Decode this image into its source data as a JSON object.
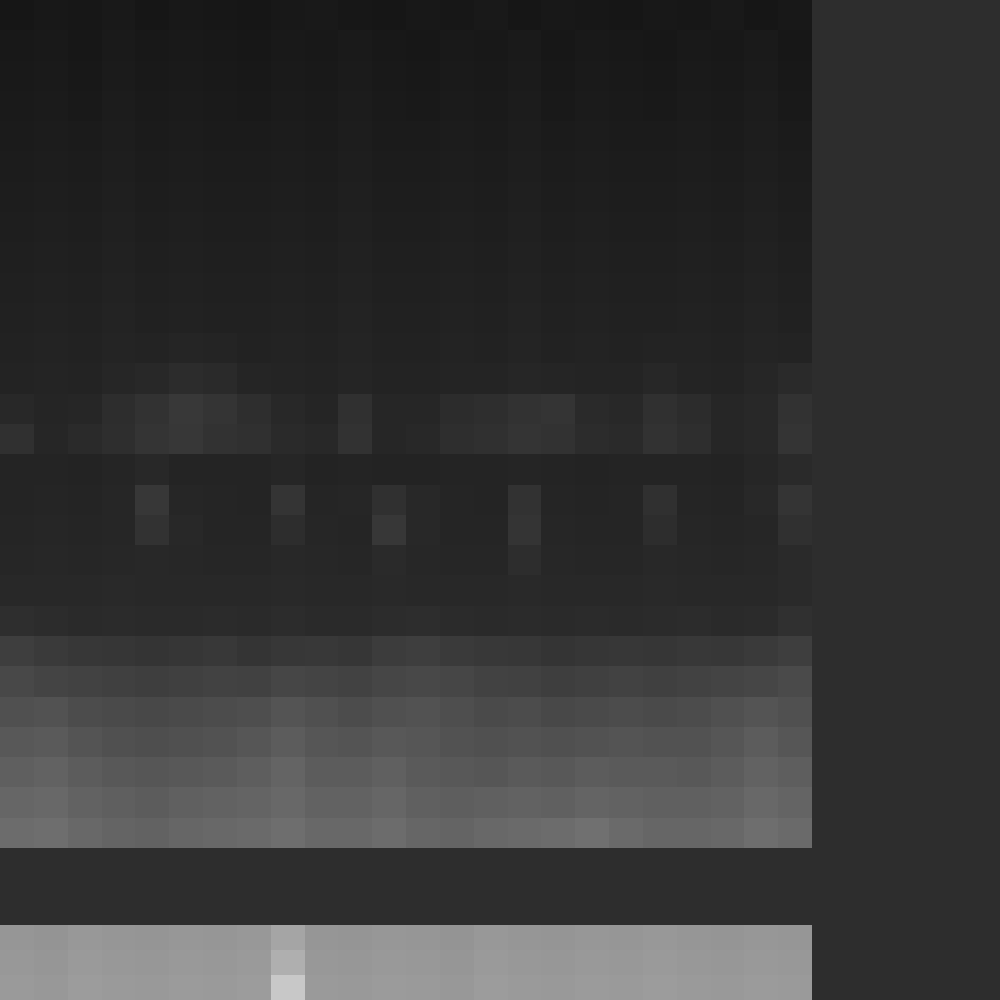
{
  "chart_data": [
    {
      "type": "heatmap",
      "tick_labels": false,
      "zlim": [
        0,
        255
      ],
      "cells": [
        [
          22,
          24,
          23,
          25,
          22,
          24,
          23,
          22,
          24,
          25,
          23,
          22,
          24,
          23,
          25,
          22,
          24,
          23,
          22,
          24,
          23,
          25,
          22,
          24
        ],
        [
          24,
          25,
          23,
          26,
          24,
          25,
          24,
          23,
          25,
          24,
          26,
          24,
          23,
          25,
          24,
          26,
          23,
          25,
          24,
          23,
          25,
          24,
          26,
          23
        ],
        [
          25,
          26,
          24,
          27,
          25,
          26,
          25,
          24,
          26,
          25,
          27,
          25,
          24,
          26,
          25,
          27,
          24,
          26,
          25,
          24,
          26,
          25,
          27,
          24
        ],
        [
          26,
          27,
          25,
          28,
          26,
          27,
          26,
          25,
          27,
          26,
          28,
          26,
          25,
          27,
          26,
          28,
          25,
          27,
          26,
          25,
          27,
          26,
          28,
          25
        ],
        [
          27,
          28,
          27,
          29,
          27,
          28,
          27,
          27,
          28,
          27,
          29,
          27,
          27,
          28,
          27,
          29,
          27,
          28,
          27,
          27,
          28,
          27,
          29,
          27
        ],
        [
          28,
          29,
          28,
          30,
          28,
          29,
          28,
          28,
          29,
          28,
          30,
          28,
          28,
          29,
          28,
          30,
          28,
          29,
          28,
          28,
          29,
          28,
          30,
          28
        ],
        [
          29,
          30,
          29,
          31,
          29,
          30,
          29,
          29,
          30,
          29,
          31,
          29,
          29,
          30,
          29,
          31,
          29,
          30,
          29,
          29,
          30,
          29,
          31,
          29
        ],
        [
          30,
          31,
          30,
          32,
          30,
          31,
          30,
          30,
          31,
          30,
          32,
          30,
          30,
          31,
          30,
          32,
          30,
          31,
          30,
          30,
          31,
          30,
          32,
          30
        ],
        [
          31,
          32,
          31,
          33,
          31,
          32,
          31,
          31,
          32,
          31,
          33,
          31,
          31,
          32,
          31,
          33,
          31,
          32,
          31,
          31,
          32,
          31,
          33,
          31
        ],
        [
          32,
          33,
          32,
          34,
          32,
          33,
          32,
          32,
          33,
          32,
          34,
          32,
          32,
          33,
          32,
          34,
          32,
          33,
          32,
          32,
          33,
          32,
          34,
          32
        ],
        [
          33,
          34,
          33,
          35,
          33,
          34,
          33,
          33,
          34,
          33,
          35,
          33,
          33,
          34,
          33,
          35,
          33,
          34,
          33,
          33,
          34,
          33,
          35,
          33
        ],
        [
          34,
          35,
          34,
          36,
          35,
          37,
          36,
          34,
          35,
          34,
          36,
          34,
          34,
          35,
          34,
          36,
          34,
          35,
          34,
          35,
          35,
          34,
          36,
          35
        ],
        [
          35,
          36,
          35,
          38,
          40,
          44,
          42,
          37,
          36,
          35,
          37,
          35,
          35,
          36,
          36,
          38,
          37,
          36,
          36,
          39,
          36,
          35,
          38,
          42
        ],
        [
          40,
          37,
          38,
          45,
          50,
          56,
          52,
          46,
          40,
          37,
          48,
          38,
          38,
          44,
          46,
          50,
          52,
          42,
          40,
          48,
          44,
          38,
          40,
          50
        ],
        [
          48,
          38,
          42,
          46,
          52,
          55,
          50,
          48,
          42,
          40,
          50,
          38,
          40,
          46,
          48,
          52,
          50,
          44,
          42,
          50,
          46,
          38,
          40,
          52
        ],
        [
          36,
          36,
          35,
          37,
          40,
          36,
          36,
          36,
          38,
          35,
          36,
          35,
          35,
          36,
          36,
          37,
          36,
          35,
          36,
          36,
          36,
          35,
          38,
          42
        ],
        [
          36,
          37,
          36,
          38,
          55,
          38,
          37,
          36,
          52,
          37,
          38,
          48,
          40,
          37,
          36,
          50,
          37,
          36,
          37,
          48,
          37,
          36,
          40,
          52
        ],
        [
          37,
          38,
          37,
          38,
          50,
          40,
          37,
          37,
          45,
          38,
          37,
          55,
          40,
          37,
          37,
          52,
          38,
          37,
          37,
          45,
          38,
          37,
          38,
          48
        ],
        [
          38,
          39,
          38,
          39,
          40,
          39,
          38,
          38,
          40,
          39,
          38,
          42,
          39,
          38,
          38,
          45,
          39,
          38,
          38,
          40,
          39,
          38,
          39,
          42
        ],
        [
          40,
          40,
          40,
          41,
          40,
          40,
          40,
          40,
          41,
          40,
          40,
          41,
          40,
          40,
          40,
          41,
          40,
          40,
          40,
          41,
          40,
          40,
          40,
          42
        ],
        [
          46,
          44,
          42,
          43,
          42,
          42,
          43,
          42,
          44,
          42,
          42,
          44,
          45,
          43,
          42,
          43,
          42,
          43,
          42,
          43,
          44,
          42,
          43,
          48
        ],
        [
          62,
          58,
          55,
          54,
          52,
          54,
          56,
          52,
          55,
          56,
          54,
          60,
          62,
          58,
          56,
          55,
          52,
          54,
          55,
          54,
          56,
          55,
          58,
          62
        ],
        [
          72,
          68,
          66,
          64,
          62,
          64,
          66,
          65,
          70,
          68,
          66,
          70,
          72,
          70,
          66,
          65,
          62,
          64,
          66,
          64,
          66,
          68,
          70,
          74
        ],
        [
          80,
          82,
          76,
          74,
          72,
          74,
          76,
          78,
          84,
          80,
          76,
          80,
          82,
          78,
          74,
          76,
          72,
          74,
          76,
          74,
          76,
          80,
          84,
          80
        ],
        [
          88,
          90,
          84,
          80,
          78,
          80,
          82,
          86,
          92,
          86,
          84,
          88,
          86,
          82,
          80,
          82,
          80,
          82,
          84,
          82,
          82,
          86,
          92,
          86
        ],
        [
          95,
          98,
          92,
          88,
          86,
          88,
          90,
          94,
          100,
          92,
          92,
          96,
          90,
          88,
          86,
          90,
          88,
          92,
          90,
          90,
          88,
          92,
          98,
          94
        ],
        [
          102,
          104,
          98,
          95,
          92,
          96,
          98,
          100,
          104,
          98,
          98,
          102,
          96,
          94,
          96,
          98,
          96,
          100,
          98,
          96,
          96,
          98,
          104,
          100
        ],
        [
          108,
          110,
          104,
          100,
          98,
          102,
          104,
          106,
          110,
          104,
          104,
          108,
          102,
          100,
          104,
          106,
          108,
          112,
          106,
          102,
          102,
          104,
          110,
          106
        ]
      ]
    },
    {
      "type": "heatmap",
      "tick_labels": false,
      "zlim": [
        0,
        255
      ],
      "cells": [
        [
          150,
          148,
          152,
          150,
          149,
          151,
          150,
          152,
          165,
          150,
          149,
          151,
          150,
          148,
          152,
          150,
          149,
          151,
          150,
          152,
          150,
          149,
          151,
          150
        ],
        [
          152,
          150,
          154,
          152,
          151,
          153,
          152,
          154,
          175,
          152,
          151,
          153,
          152,
          150,
          154,
          152,
          151,
          153,
          152,
          154,
          152,
          151,
          153,
          152
        ],
        [
          154,
          152,
          156,
          154,
          153,
          155,
          154,
          156,
          200,
          154,
          153,
          155,
          154,
          152,
          156,
          154,
          153,
          155,
          154,
          156,
          154,
          153,
          155,
          154
        ]
      ]
    }
  ]
}
